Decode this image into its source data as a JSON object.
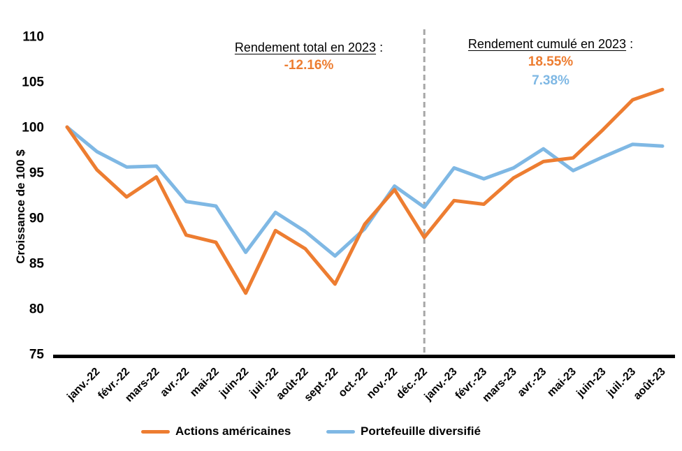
{
  "chart_data": {
    "type": "line",
    "title": "",
    "ylabel": "Croissance de 100 $",
    "ylim": [
      75,
      110
    ],
    "ytick_step": 5,
    "grid": false,
    "legend_position": "bottom",
    "x_labels": [
      "janv.-22",
      "févr.-22",
      "mars-22",
      "avr.-22",
      "mai-22",
      "juin-22",
      "juil.-22",
      "août-22",
      "sept.-22",
      "oct.-22",
      "nov.-22",
      "déc.-22",
      "janv.-23",
      "févr.-23",
      "mars-23",
      "avr.-23",
      "mai-23",
      "juin-23",
      "juil.-23",
      "août-23"
    ],
    "baseline_label": "",
    "note": "Each series starts at an unlabeled baseline point of 100 one interval before janv.-22",
    "divider_at_label": "déc.-22",
    "divider_color": "#A6A6A6",
    "axis_color": "#000000",
    "series": [
      {
        "name": "Actions américaines",
        "color": "#ED7D31",
        "values": [
          100,
          95.3,
          92.3,
          94.5,
          88.1,
          87.3,
          81.7,
          88.6,
          86.6,
          82.7,
          89.3,
          93.1,
          87.84,
          91.9,
          91.5,
          94.4,
          96.2,
          96.6,
          99.7,
          103.0,
          104.13
        ]
      },
      {
        "name": "Portefeuille diversifié",
        "color": "#7FB8E4",
        "values": [
          100,
          97.3,
          95.6,
          95.7,
          91.8,
          91.3,
          86.2,
          90.6,
          88.5,
          85.8,
          88.8,
          93.5,
          91.17,
          95.5,
          94.3,
          95.5,
          97.6,
          95.2,
          96.7,
          98.1,
          97.9
        ]
      }
    ]
  },
  "annotations": {
    "left": {
      "label": "Rendement total en 2023",
      "colon": " :",
      "values": [
        {
          "text": "-12.16%",
          "color": "#ED7D31"
        }
      ]
    },
    "right": {
      "label": "Rendement cumulé en 2023",
      "colon": " :",
      "values": [
        {
          "text": "18.55%",
          "color": "#ED7D31"
        },
        {
          "text": "7.38%",
          "color": "#7FB8E4"
        }
      ]
    }
  }
}
